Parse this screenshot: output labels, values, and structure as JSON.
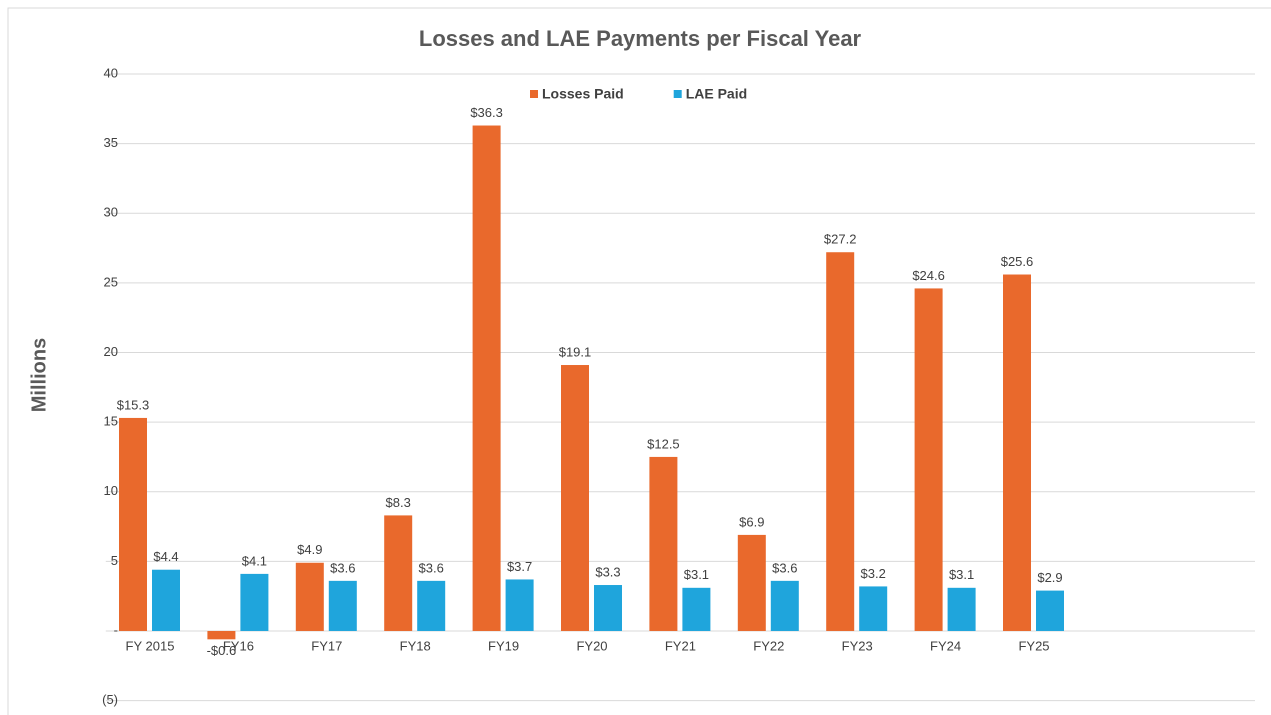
{
  "chart_data": {
    "type": "bar",
    "title": "Losses and LAE Payments per Fiscal Year",
    "y_label": "Millions",
    "categories": [
      "FY 2015",
      "FY16",
      "FY17",
      "FY18",
      "FY19",
      "FY20",
      "FY21",
      "FY22",
      "FY23",
      "FY24",
      "FY25",
      null,
      null
    ],
    "series": [
      {
        "name": "Losses Paid",
        "color": "#e9692c",
        "values": [
          15.3,
          -0.6,
          4.9,
          8.3,
          36.3,
          19.1,
          12.5,
          6.9,
          27.2,
          24.6,
          25.6,
          null,
          null
        ],
        "value_labels": [
          "$15.3",
          "-$0.6",
          "$4.9",
          "$8.3",
          "$36.3",
          "$19.1",
          "$12.5",
          "$6.9",
          "$27.2",
          "$24.6",
          "$25.6",
          null,
          null
        ]
      },
      {
        "name": "LAE Paid",
        "color": "#1fa5dc",
        "values": [
          4.4,
          4.1,
          3.6,
          3.6,
          3.7,
          3.3,
          3.1,
          3.6,
          3.2,
          3.1,
          2.9,
          null,
          null
        ],
        "value_labels": [
          "$4.4",
          "$4.1",
          "$3.6",
          "$3.6",
          "$3.7",
          "$3.3",
          "$3.1",
          "$3.6",
          "$3.2",
          "$3.1",
          "$2.9",
          null,
          null
        ]
      }
    ],
    "ylim": [
      -5,
      40
    ],
    "yticks": [
      {
        "value": -5,
        "label": "(5)"
      },
      {
        "value": 0,
        "label": "-"
      },
      5,
      10,
      15,
      20,
      25,
      30,
      35,
      40
    ],
    "grid": true,
    "legend": "top"
  }
}
